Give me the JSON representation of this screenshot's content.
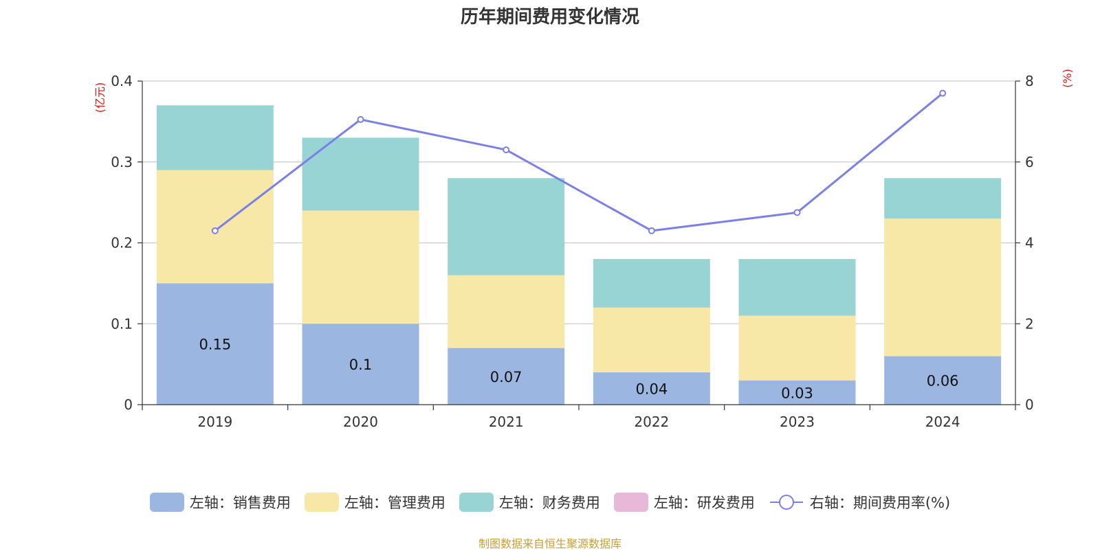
{
  "chart_data": {
    "type": "bar",
    "title": "历年期间费用变化情况",
    "categories": [
      "2019",
      "2020",
      "2021",
      "2022",
      "2023",
      "2024"
    ],
    "left_unit": "(亿元)",
    "right_unit": "(%)",
    "left_ylim": [
      0,
      0.4
    ],
    "left_ticks": [
      "0",
      "0.1",
      "0.2",
      "0.3",
      "0.4"
    ],
    "right_ylim": [
      0,
      8
    ],
    "right_ticks": [
      "0",
      "2",
      "4",
      "6",
      "8"
    ],
    "grid": true,
    "legend_position": "bottom",
    "series": [
      {
        "name": "左轴：销售费用",
        "kind": "bar",
        "color": "#9bb7e1",
        "values": [
          0.15,
          0.1,
          0.07,
          0.04,
          0.03,
          0.06
        ],
        "labels": [
          "0.15",
          "0.1",
          "0.07",
          "0.04",
          "0.03",
          "0.06"
        ]
      },
      {
        "name": "左轴：管理费用",
        "kind": "bar",
        "color": "#f7e8a8",
        "values": [
          0.14,
          0.14,
          0.09,
          0.08,
          0.08,
          0.17
        ]
      },
      {
        "name": "左轴：财务费用",
        "kind": "bar",
        "color": "#98d4d4",
        "values": [
          0.08,
          0.09,
          0.12,
          0.06,
          0.07,
          0.05
        ]
      },
      {
        "name": "左轴：研发费用",
        "kind": "bar",
        "color": "#e8b8d8",
        "values": [
          0,
          0,
          0,
          0,
          0,
          0
        ]
      },
      {
        "name": "右轴：期间费用率(%)",
        "kind": "line",
        "color": "#7b7fe8",
        "values": [
          4.3,
          7.05,
          6.3,
          4.3,
          4.75,
          7.7
        ]
      }
    ]
  },
  "footer": {
    "source": "制图数据来自恒生聚源数据库"
  }
}
